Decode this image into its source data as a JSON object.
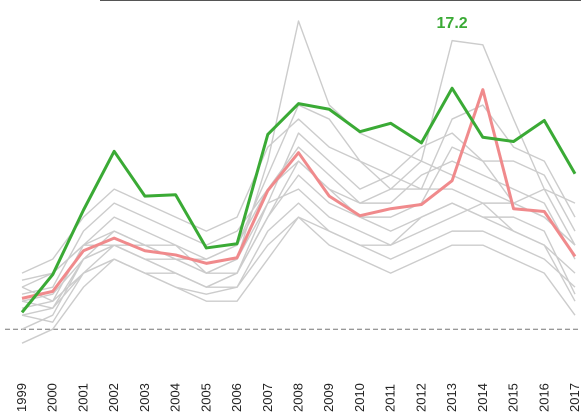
{
  "chart_data": {
    "type": "line",
    "categories": [
      "1999",
      "2000",
      "2001",
      "2002",
      "2003",
      "2004",
      "2005",
      "2006",
      "2007",
      "2008",
      "2009",
      "2010",
      "2011",
      "2012",
      "2013",
      "2014",
      "2015",
      "2016",
      "2017"
    ],
    "ylim": [
      -1.2,
      23.5
    ],
    "reference_line": 0,
    "series": [
      {
        "color": "#cccccc",
        "values": [
          2,
          1.5,
          5,
          7,
          6,
          5,
          4,
          5,
          12,
          22,
          16,
          14,
          13,
          12,
          20.6,
          20.3,
          15,
          10,
          6
        ]
      },
      {
        "color": "#cccccc",
        "values": [
          3,
          2,
          6,
          8,
          7,
          6,
          5,
          6,
          11,
          16,
          15,
          12,
          11,
          10,
          15,
          16,
          13,
          12,
          8
        ]
      },
      {
        "color": "#cccccc",
        "values": [
          1,
          0.5,
          4,
          5,
          4,
          4,
          3,
          4,
          8,
          12,
          10,
          8,
          7,
          8,
          9,
          8,
          7,
          6,
          2
        ]
      },
      {
        "color": "#cccccc",
        "values": [
          2.5,
          3,
          7,
          9,
          8,
          7,
          6,
          7,
          10,
          13,
          11,
          9,
          9,
          11,
          12,
          11,
          10,
          9,
          5
        ]
      },
      {
        "color": "#cccccc",
        "values": [
          0,
          1,
          5,
          6,
          5,
          4,
          3,
          3,
          7,
          9,
          7,
          6,
          5,
          6,
          7,
          7,
          6,
          5,
          3
        ]
      },
      {
        "color": "#cccccc",
        "values": [
          3,
          4,
          6,
          7,
          6,
          6,
          4,
          5,
          9,
          14,
          12,
          10,
          11,
          13,
          14,
          12,
          12,
          11,
          7
        ]
      },
      {
        "color": "#cccccc",
        "values": [
          1.5,
          2,
          4,
          5,
          4,
          3,
          2.5,
          3,
          6,
          8,
          6,
          5,
          4,
          5,
          6,
          6,
          5,
          4,
          1
        ]
      },
      {
        "color": "#cccccc",
        "values": [
          4,
          5,
          8,
          10,
          9,
          8,
          7,
          8,
          13,
          15,
          13,
          12,
          10,
          12,
          11,
          10,
          9,
          10,
          9
        ]
      },
      {
        "color": "#cccccc",
        "values": [
          -1,
          0,
          3,
          5,
          4,
          3,
          2,
          2,
          5,
          8,
          7,
          6,
          6,
          7,
          8,
          9,
          7,
          6,
          4
        ]
      },
      {
        "color": "#cccccc",
        "values": [
          2,
          2.5,
          5,
          6,
          5,
          5,
          4,
          4,
          8,
          11,
          9,
          8,
          8,
          9,
          13,
          12,
          9,
          8,
          6
        ]
      },
      {
        "color": "#cccccc",
        "values": [
          3.5,
          4,
          6,
          6,
          6,
          5,
          5,
          6,
          10,
          12,
          10,
          9,
          10,
          10,
          10,
          9,
          9,
          8,
          6
        ]
      },
      {
        "color": "#cccccc",
        "values": [
          1,
          1.5,
          4,
          6,
          5,
          4,
          3,
          4,
          9,
          10,
          8,
          7,
          6,
          8,
          9,
          8,
          8,
          7,
          2.5
        ]
      },
      {
        "color": "#f08a8c",
        "values": [
          2.2,
          2.7,
          5.6,
          6.5,
          5.6,
          5.3,
          4.7,
          5.1,
          9.9,
          12.6,
          9.5,
          8.1,
          8.6,
          8.9,
          10.6,
          17.1,
          8.6,
          8.4,
          5.2
        ]
      },
      {
        "color": "#3aaa35",
        "values": [
          1.2,
          3.9,
          8.5,
          12.7,
          9.5,
          9.6,
          5.8,
          6.1,
          13.9,
          16.1,
          15.7,
          14.1,
          14.7,
          13.3,
          17.2,
          13.7,
          13.4,
          14.9,
          11.1
        ],
        "value_labels": [
          null,
          null,
          null,
          null,
          null,
          null,
          null,
          null,
          null,
          null,
          null,
          null,
          null,
          null,
          "17.2",
          null,
          null,
          null,
          null
        ]
      }
    ]
  }
}
